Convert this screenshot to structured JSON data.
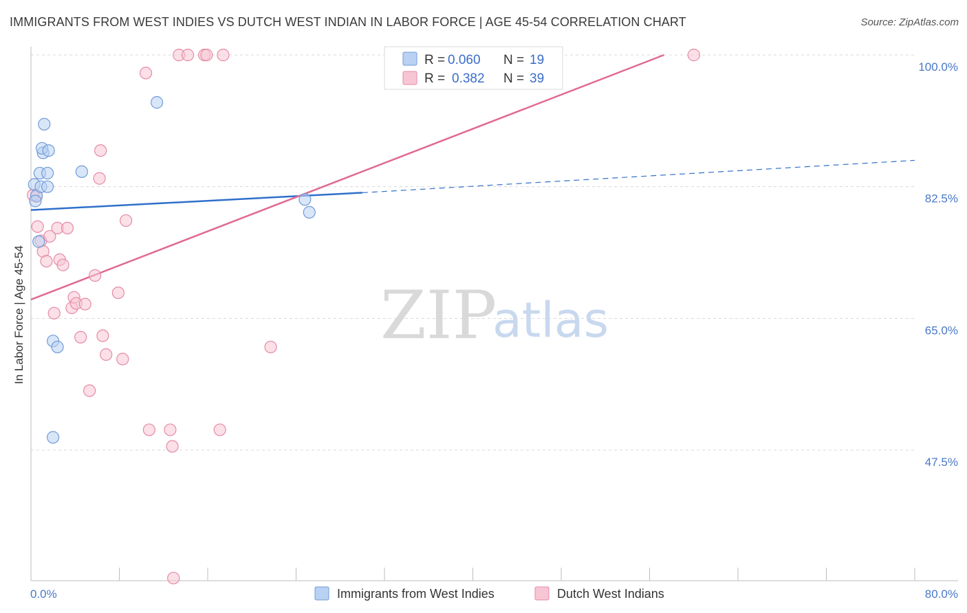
{
  "title": "IMMIGRANTS FROM WEST INDIES VS DUTCH WEST INDIAN IN LABOR FORCE | AGE 45-54 CORRELATION CHART",
  "source": "Source: ZipAtlas.com",
  "watermark": {
    "zip": "ZIP",
    "atlas": "atlas"
  },
  "legend": {
    "r_label": "R =",
    "n_label": "N =",
    "rows": [
      {
        "r": "0.060",
        "n": "19",
        "color": "#a9c6ee"
      },
      {
        "r": "0.382",
        "n": "39",
        "color": "#f3b7c9"
      }
    ]
  },
  "bottom_legend": [
    "Immigrants from West Indies",
    "Dutch West Indians"
  ],
  "colors": {
    "blue_fill": "#b9d1f2",
    "blue_stroke": "#6f9bd8",
    "blue_line": "#2f6fcb",
    "pink_fill": "#f7c6d4",
    "pink_stroke": "#e58aa6",
    "pink_line": "#e06a93",
    "grid": "#d8d8d8",
    "tick_text": "#4a78c8"
  },
  "chart_data": {
    "type": "scatter",
    "title": "IMMIGRANTS FROM WEST INDIES VS DUTCH WEST INDIAN IN LABOR FORCE | AGE 45-54 CORRELATION CHART",
    "xlabel": "",
    "ylabel": "In Labor Force | Age 45-54",
    "xlim": [
      0,
      80
    ],
    "ylim": [
      30,
      101.5
    ],
    "x_tick_labels": [
      "0.0%",
      "80.0%"
    ],
    "y_ticks": [
      47.5,
      65.0,
      82.5,
      100.0
    ],
    "y_tick_labels": [
      "47.5%",
      "65.0%",
      "82.5%",
      "100.0%"
    ],
    "series": [
      {
        "name": "Immigrants from West Indies",
        "r": 0.06,
        "n": 19,
        "points": [
          [
            0.3,
            82.8
          ],
          [
            0.5,
            81.3
          ],
          [
            0.4,
            80.6
          ],
          [
            0.8,
            84.3
          ],
          [
            0.9,
            82.5
          ],
          [
            1.1,
            87.0
          ],
          [
            1.2,
            90.8
          ],
          [
            1.0,
            87.6
          ],
          [
            1.5,
            84.3
          ],
          [
            1.6,
            87.3
          ],
          [
            1.5,
            82.5
          ],
          [
            0.7,
            75.2
          ],
          [
            2.0,
            62.0
          ],
          [
            2.4,
            61.2
          ],
          [
            2.0,
            49.2
          ],
          [
            4.6,
            84.5
          ],
          [
            11.4,
            93.7
          ],
          [
            24.8,
            80.8
          ],
          [
            25.2,
            79.1
          ]
        ],
        "trend": {
          "x_start": 0,
          "y_start": 79.4,
          "x_solid_end": 30,
          "y_solid_end": 81.7,
          "x_end": 80,
          "y_end": 86.0
        }
      },
      {
        "name": "Dutch West Indians",
        "r": 0.382,
        "n": 39,
        "points": [
          [
            0.5,
            81.2
          ],
          [
            0.6,
            77.2
          ],
          [
            0.9,
            75.3
          ],
          [
            1.1,
            73.9
          ],
          [
            1.4,
            72.6
          ],
          [
            1.7,
            75.9
          ],
          [
            2.1,
            65.7
          ],
          [
            2.4,
            77.0
          ],
          [
            2.6,
            72.8
          ],
          [
            2.9,
            72.1
          ],
          [
            3.3,
            77.0
          ],
          [
            3.7,
            66.4
          ],
          [
            3.9,
            67.8
          ],
          [
            4.1,
            67.0
          ],
          [
            4.5,
            62.5
          ],
          [
            4.9,
            66.9
          ],
          [
            5.3,
            55.4
          ],
          [
            5.8,
            70.7
          ],
          [
            6.2,
            83.6
          ],
          [
            6.3,
            87.3
          ],
          [
            6.5,
            62.7
          ],
          [
            6.8,
            60.2
          ],
          [
            7.9,
            68.4
          ],
          [
            8.3,
            59.6
          ],
          [
            8.6,
            78.0
          ],
          [
            10.4,
            97.6
          ],
          [
            10.7,
            50.2
          ],
          [
            12.6,
            50.2
          ],
          [
            12.8,
            48.0
          ],
          [
            12.9,
            30.5
          ],
          [
            13.4,
            100.0
          ],
          [
            14.2,
            100.0
          ],
          [
            15.7,
            100.0
          ],
          [
            15.9,
            100.0
          ],
          [
            17.1,
            50.2
          ],
          [
            17.4,
            100.0
          ],
          [
            21.7,
            61.2
          ],
          [
            60.0,
            100.0
          ],
          [
            0.2,
            81.4
          ]
        ],
        "trend": {
          "x_start": 0,
          "y_start": 67.5,
          "x_end": 57.3,
          "y_end": 100.0
        }
      }
    ]
  }
}
